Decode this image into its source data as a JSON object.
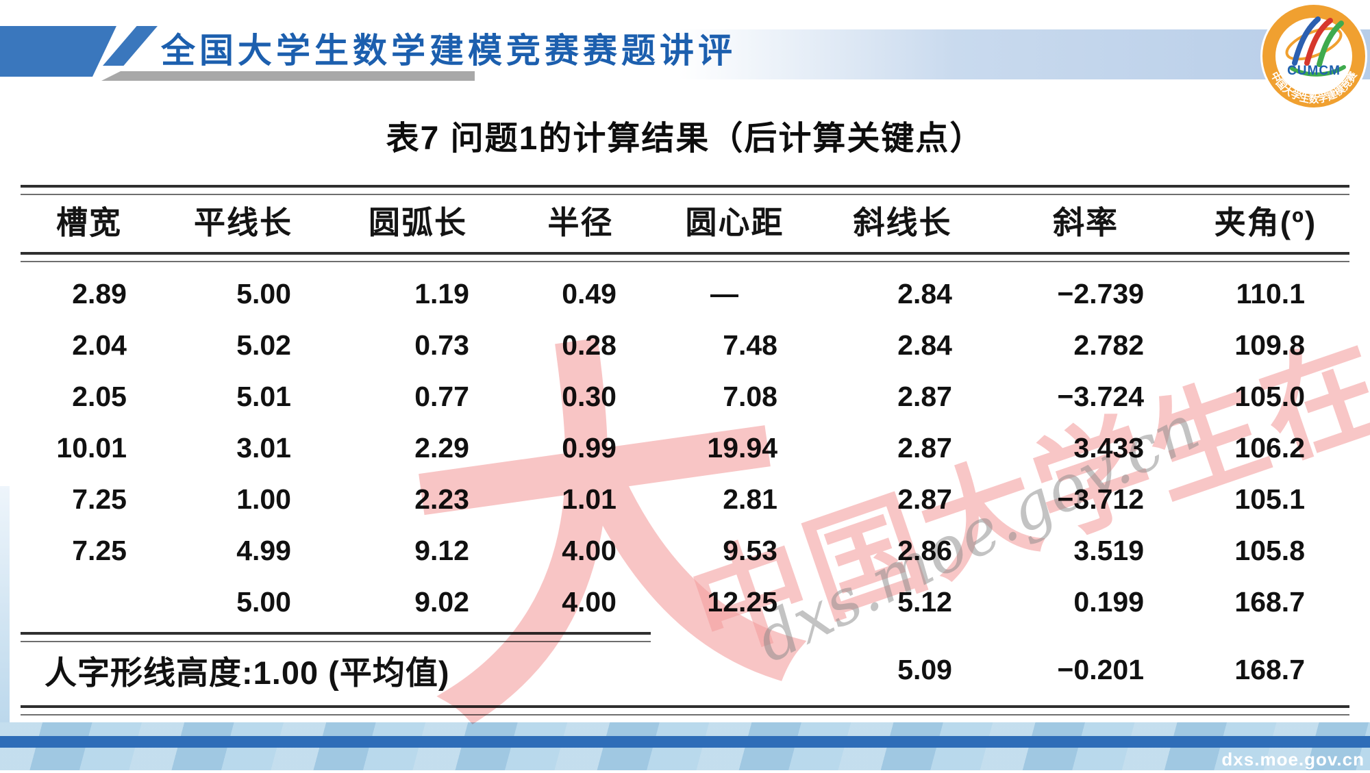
{
  "header": {
    "title": "全国大学生数学建模竞赛赛题讲评",
    "logo": {
      "text": "CUMCM",
      "ring_text": "中国大学生数学建模竞赛"
    }
  },
  "table": {
    "caption": "表7 问题1的计算结果（后计算关键点）",
    "columns": [
      "槽宽",
      "平线长",
      "圆弧长",
      "半径",
      "圆心距",
      "斜线长",
      "斜率",
      "夹角(º)"
    ],
    "rows": [
      [
        "2.89",
        "5.00",
        "1.19",
        "0.49",
        "—",
        "2.84",
        "−2.739",
        "110.1"
      ],
      [
        "2.04",
        "5.02",
        "0.73",
        "0.28",
        "7.48",
        "2.84",
        "2.782",
        "109.8"
      ],
      [
        "2.05",
        "5.01",
        "0.77",
        "0.30",
        "7.08",
        "2.87",
        "−3.724",
        "105.0"
      ],
      [
        "10.01",
        "3.01",
        "2.29",
        "0.99",
        "19.94",
        "2.87",
        "3.433",
        "106.2"
      ],
      [
        "7.25",
        "1.00",
        "2.23",
        "1.01",
        "2.81",
        "2.87",
        "−3.712",
        "105.1"
      ],
      [
        "7.25",
        "4.99",
        "9.12",
        "4.00",
        "9.53",
        "2.86",
        "3.519",
        "105.8"
      ],
      [
        "",
        "5.00",
        "9.02",
        "4.00",
        "12.25",
        "5.12",
        "0.199",
        "168.7"
      ]
    ],
    "footer": {
      "label": "人字形线高度:1.00 (平均值)",
      "values": [
        "5.09",
        "−0.201",
        "168.7"
      ]
    }
  },
  "watermark": {
    "big_glyph": "大",
    "cn_text": "中国大学生在线",
    "url_text": "dxs.moe.gov.cn"
  },
  "footer_bar": {
    "site": "dxs.moe.gov.cn"
  },
  "colors": {
    "accent_blue": "#3a77bd",
    "title_blue": "#1c5fae",
    "band_blue": "#2e6db8",
    "watermark_pink": "#f2a0a0",
    "logo_orange": "#f0a030"
  }
}
